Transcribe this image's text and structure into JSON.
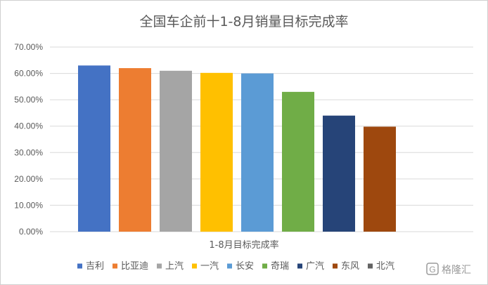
{
  "chart_data": {
    "type": "bar",
    "title": "全国车企前十1-8月销量目标完成率",
    "xlabel": "1-8月目标完成率",
    "ylabel": "",
    "ylim": [
      0,
      70
    ],
    "yticks": [
      "0.00%",
      "10.00%",
      "20.00%",
      "30.00%",
      "40.00%",
      "50.00%",
      "60.00%",
      "70.00%"
    ],
    "grid": true,
    "legend_position": "bottom",
    "series": [
      {
        "name": "吉利",
        "value": 63.0,
        "color": "#4472C4"
      },
      {
        "name": "比亚迪",
        "value": 62.0,
        "color": "#ED7D31"
      },
      {
        "name": "上汽",
        "value": 61.0,
        "color": "#A5A5A5"
      },
      {
        "name": "一汽",
        "value": 60.2,
        "color": "#FFC000"
      },
      {
        "name": "长安",
        "value": 60.0,
        "color": "#5B9BD5"
      },
      {
        "name": "奇瑞",
        "value": 53.0,
        "color": "#70AD47"
      },
      {
        "name": "广汽",
        "value": 44.0,
        "color": "#264478"
      },
      {
        "name": "东风",
        "value": 39.8,
        "color": "#9E480E"
      },
      {
        "name": "北汽",
        "value": 0,
        "color": "#636363"
      }
    ]
  },
  "watermark": {
    "text": "格隆汇"
  }
}
